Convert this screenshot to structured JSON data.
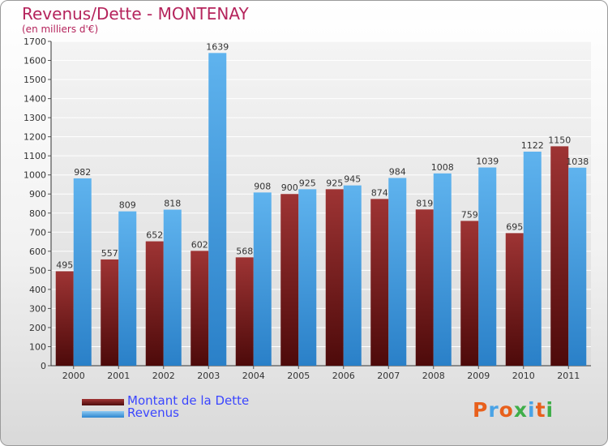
{
  "title": "Revenus/Dette - MONTENAY",
  "subtitle": "(en milliers d'€)",
  "colors": {
    "debt": "#7a1b1b",
    "revenue": "#4aa3e6",
    "title": "#b5245c",
    "legend_text": "#3b46ff"
  },
  "chart_data": {
    "type": "bar",
    "title": "Revenus/Dette - MONTENAY",
    "ylabel": "(en milliers d'€)",
    "xlabel": "",
    "categories": [
      "2000",
      "2001",
      "2002",
      "2003",
      "2004",
      "2005",
      "2006",
      "2007",
      "2008",
      "2009",
      "2010",
      "2011"
    ],
    "series": [
      {
        "name": "Montant de la Dette",
        "values": [
          495,
          557,
          652,
          602,
          568,
          900,
          925,
          874,
          819,
          759,
          695,
          1150
        ]
      },
      {
        "name": "Revenus",
        "values": [
          982,
          809,
          818,
          1639,
          908,
          925,
          945,
          984,
          1008,
          1039,
          1122,
          1038
        ]
      }
    ],
    "ylim": [
      0,
      1700
    ],
    "yticks": [
      0,
      100,
      200,
      300,
      400,
      500,
      600,
      700,
      800,
      900,
      1000,
      1100,
      1200,
      1300,
      1400,
      1500,
      1600,
      1700
    ],
    "grid": true,
    "legend_position": "bottom-left"
  },
  "legend": {
    "debt_label": "Montant de la Dette",
    "revenue_label": "Revenus"
  },
  "brand": {
    "text": "Proxiti",
    "letter_colors": [
      "#e8601c",
      "#4aa3e6",
      "#e8601c",
      "#3fae49",
      "#4aa3e6",
      "#e8601c",
      "#3fae49"
    ]
  }
}
